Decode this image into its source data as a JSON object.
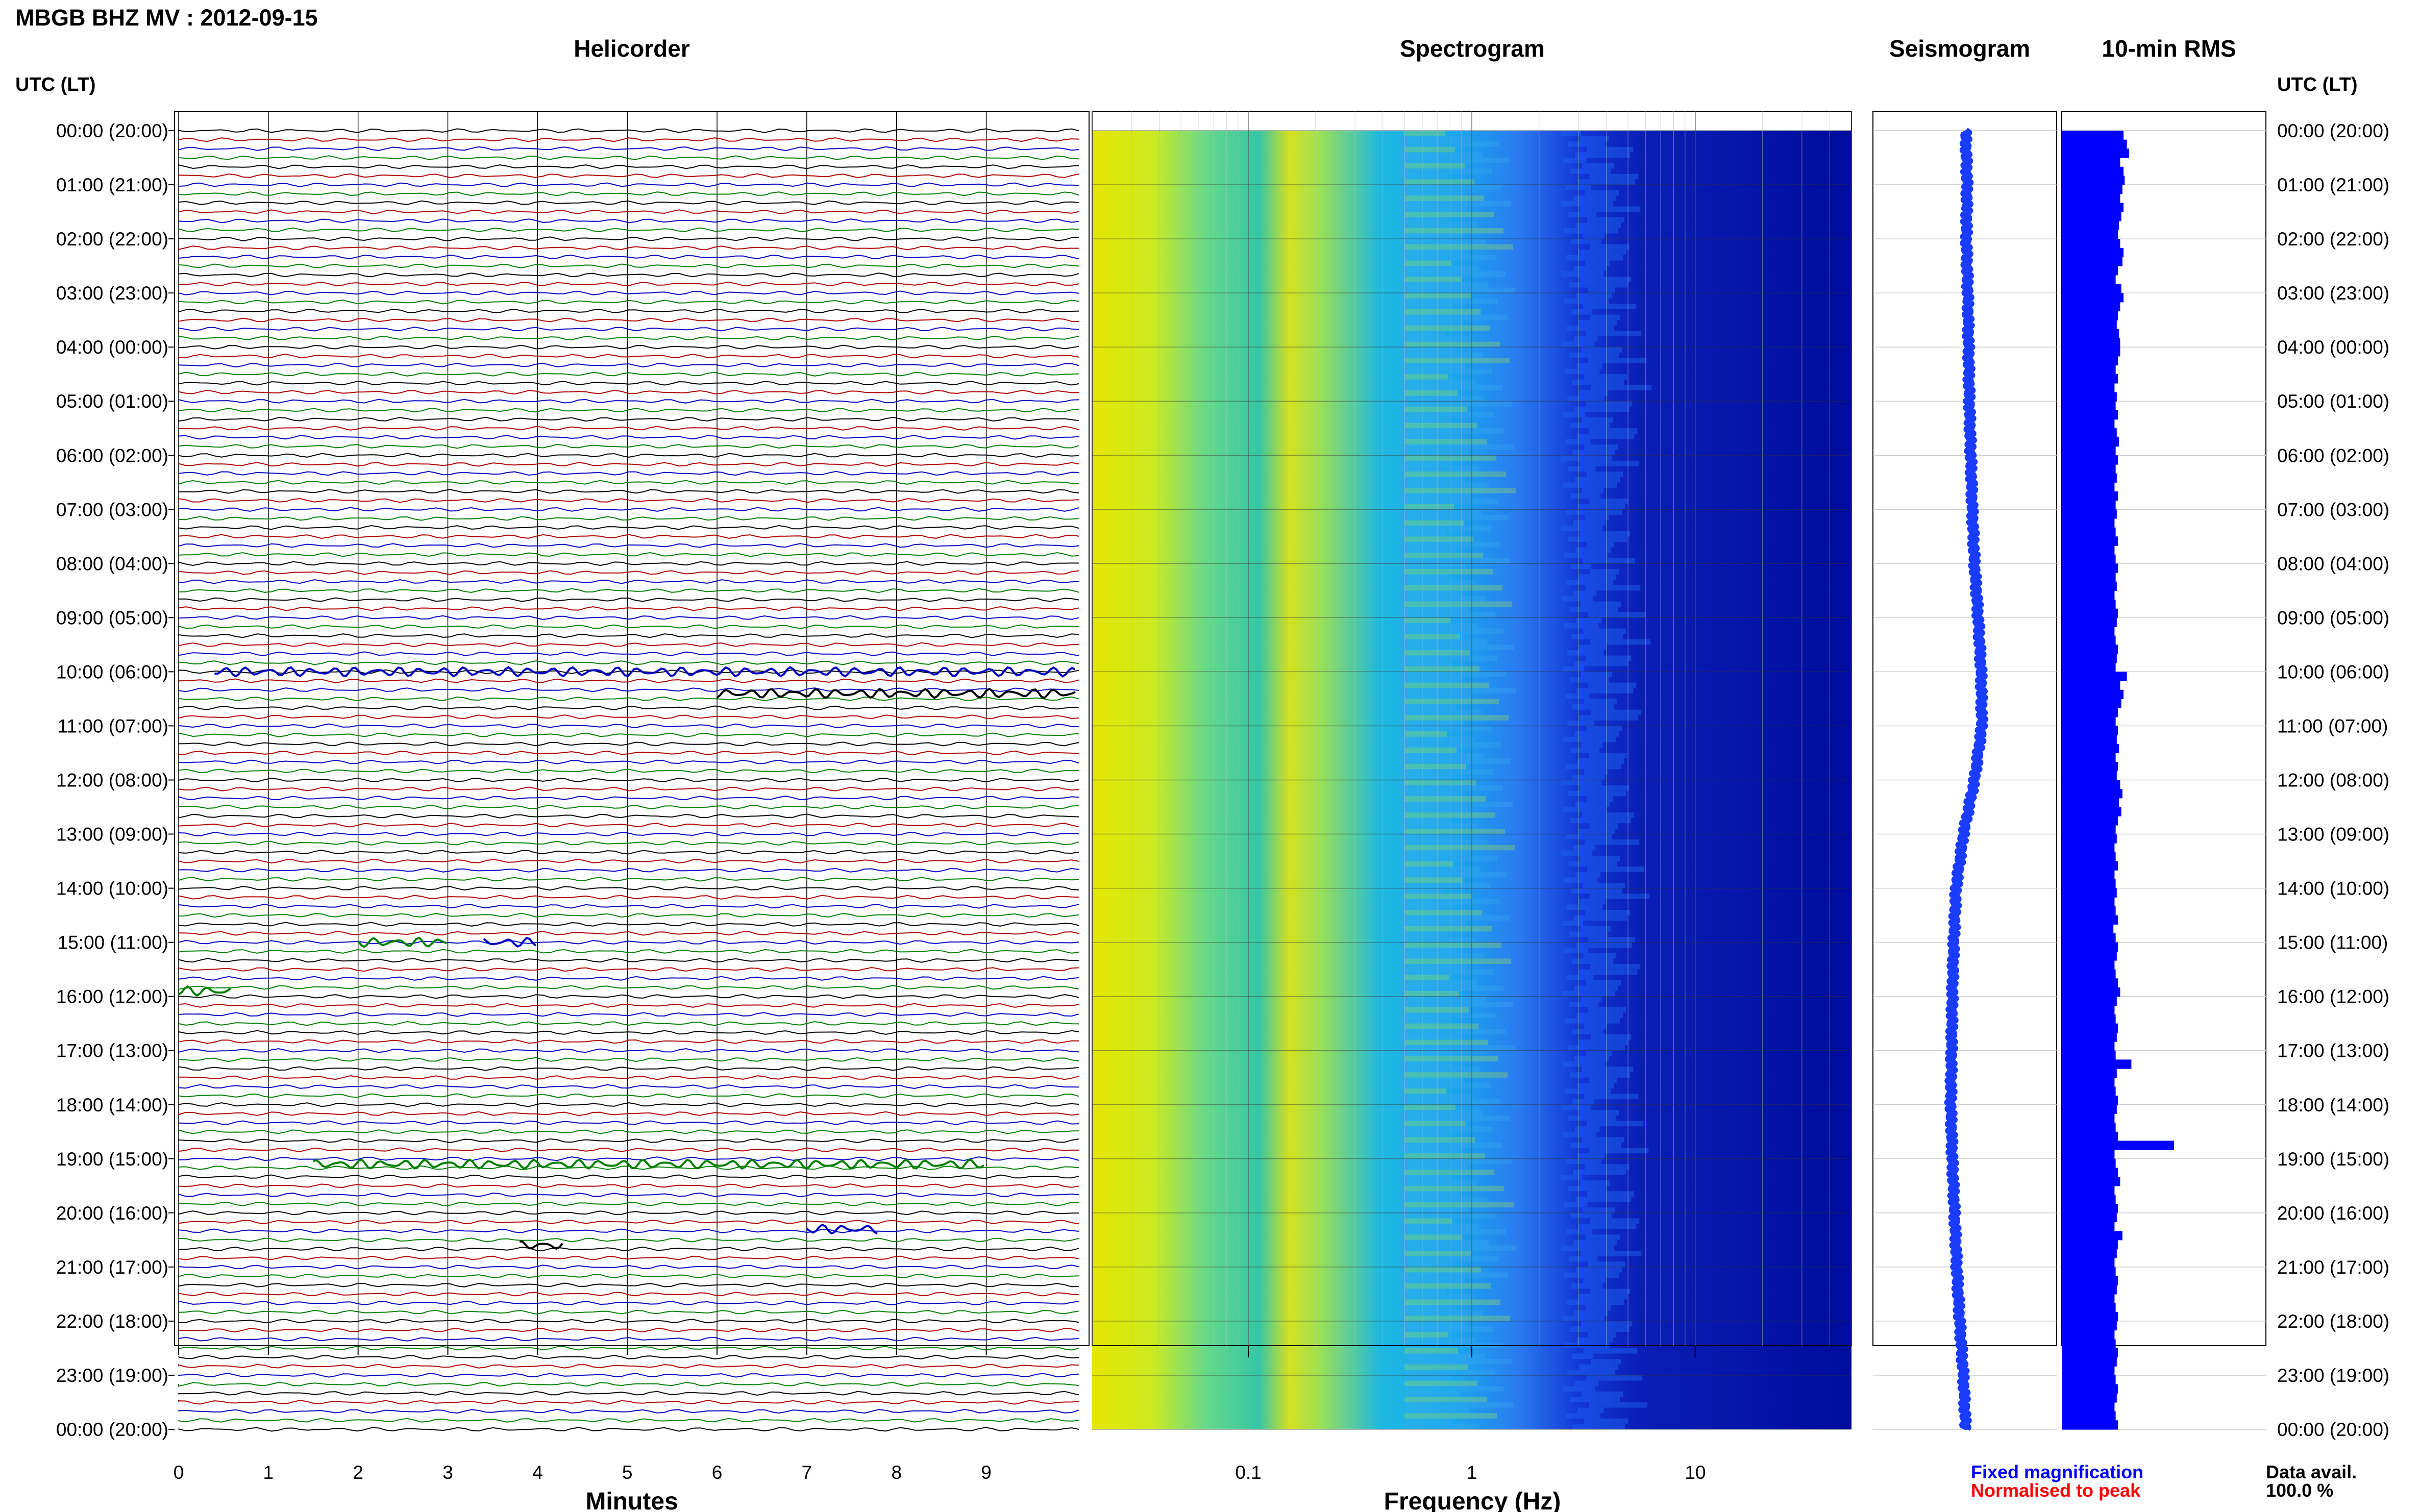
{
  "header": {
    "title": "MBGB BHZ MV : 2012-09-15"
  },
  "panels": {
    "helicorder": "Helicorder",
    "spectrogram": "Spectrogram",
    "seismogram": "Seismogram",
    "rms": "10-min RMS"
  },
  "axes": {
    "utc_label_left": "UTC (LT)",
    "utc_label_right": "UTC (LT)",
    "helicorder_xlabel": "Minutes",
    "spectrogram_xlabel": "Frequency (Hz)",
    "minute_ticks": [
      "0",
      "1",
      "2",
      "3",
      "4",
      "5",
      "6",
      "7",
      "8",
      "9"
    ],
    "freq_ticks": [
      "0.1",
      "1",
      "10"
    ]
  },
  "time_labels": [
    "00:00 (20:00)",
    "01:00 (21:00)",
    "02:00 (22:00)",
    "03:00 (23:00)",
    "04:00 (00:00)",
    "05:00 (01:00)",
    "06:00 (02:00)",
    "07:00 (03:00)",
    "08:00 (04:00)",
    "09:00 (05:00)",
    "10:00 (06:00)",
    "11:00 (07:00)",
    "12:00 (08:00)",
    "13:00 (09:00)",
    "14:00 (10:00)",
    "15:00 (11:00)",
    "16:00 (12:00)",
    "17:00 (13:00)",
    "18:00 (14:00)",
    "19:00 (15:00)",
    "20:00 (16:00)",
    "21:00 (17:00)",
    "22:00 (18:00)",
    "23:00 (19:00)",
    "00:00 (20:00)"
  ],
  "footer": {
    "fixed_magnification": "Fixed magnification",
    "normalised": "Normalised to peak",
    "data_avail_label": "Data avail.",
    "data_avail_value": "100.0 %"
  },
  "colors": {
    "trace_cycle": [
      "#000000",
      "#b00000",
      "#0000c0",
      "#008000"
    ],
    "fixed_magnification": "#0000ff",
    "normalised": "#ff0000",
    "rms_bar": "#0000ff",
    "seismogram": "#1a3cff"
  },
  "chart_data": {
    "type": "heatmap",
    "title": "MBGB BHZ MV : 2012-09-15",
    "helicorder": {
      "xlabel": "Minutes",
      "xlim": [
        0,
        10
      ],
      "rows_per_hour": 6,
      "events": [
        {
          "hour": 10.0,
          "minute_start": 0.4,
          "minute_end": 10,
          "color": "#0000c0"
        },
        {
          "hour": 10.4,
          "minute_start": 6.0,
          "minute_end": 10,
          "color": "#000000"
        },
        {
          "hour": 15.0,
          "minute_start": 3.4,
          "minute_end": 4.0,
          "color": "#0000c0"
        },
        {
          "hour": 15.0,
          "minute_start": 2.0,
          "minute_end": 3.0,
          "color": "#008000"
        },
        {
          "hour": 15.9,
          "minute_start": 0.0,
          "minute_end": 0.6,
          "color": "#008000"
        },
        {
          "hour": 19.1,
          "minute_start": 1.5,
          "minute_end": 9.0,
          "color": "#008000"
        },
        {
          "hour": 20.3,
          "minute_start": 7.0,
          "minute_end": 7.8,
          "color": "#0000c0"
        },
        {
          "hour": 20.6,
          "minute_start": 3.8,
          "minute_end": 4.3,
          "color": "#000000"
        }
      ]
    },
    "spectrogram": {
      "xlabel": "Frequency (Hz)",
      "xscale": "log",
      "xlim": [
        0.02,
        50
      ],
      "ticks": [
        0.1,
        1,
        10
      ]
    },
    "rms_10min_relative": [
      0.55,
      0.58,
      0.6,
      0.52,
      0.55,
      0.56,
      0.54,
      0.52,
      0.55,
      0.53,
      0.51,
      0.5,
      0.52,
      0.55,
      0.54,
      0.5,
      0.48,
      0.53,
      0.55,
      0.52,
      0.5,
      0.49,
      0.51,
      0.52,
      0.52,
      0.5,
      0.48,
      0.5,
      0.47,
      0.49,
      0.48,
      0.5,
      0.47,
      0.49,
      0.51,
      0.48,
      0.5,
      0.48,
      0.49,
      0.47,
      0.5,
      0.48,
      0.49,
      0.47,
      0.48,
      0.5,
      0.47,
      0.48,
      0.5,
      0.48,
      0.49,
      0.47,
      0.48,
      0.5,
      0.49,
      0.47,
      0.48,
      0.5,
      0.49,
      0.48,
      0.58,
      0.52,
      0.55,
      0.53,
      0.5,
      0.48,
      0.5,
      0.49,
      0.51,
      0.48,
      0.5,
      0.49,
      0.52,
      0.54,
      0.51,
      0.53,
      0.5,
      0.48,
      0.49,
      0.47,
      0.48,
      0.5,
      0.47,
      0.48,
      0.49,
      0.47,
      0.48,
      0.5,
      0.46,
      0.48,
      0.5,
      0.49,
      0.47,
      0.48,
      0.5,
      0.52,
      0.49,
      0.47,
      0.48,
      0.5,
      0.49,
      0.47,
      0.48,
      0.62,
      0.49,
      0.47,
      0.48,
      0.5,
      0.49,
      0.47,
      0.48,
      0.5,
      1.0,
      0.47,
      0.48,
      0.5,
      0.52,
      0.47,
      0.48,
      0.5,
      0.49,
      0.47,
      0.54,
      0.5,
      0.49,
      0.47,
      0.48,
      0.5,
      0.49,
      0.47,
      0.48,
      0.5,
      0.49,
      0.47,
      0.48,
      0.5,
      0.49,
      0.47,
      0.48,
      0.5,
      0.49,
      0.47,
      0.48,
      0.5
    ],
    "seismogram_offset": [
      0.08,
      0.1,
      0.09,
      0.11,
      0.12,
      0.13,
      0.15,
      0.17,
      0.2,
      0.25,
      0.29,
      0.3,
      0.2,
      0.05,
      -0.05,
      -0.08,
      -0.1,
      -0.11,
      -0.12,
      -0.1,
      -0.07,
      -0.04,
      0.0,
      0.05,
      0.08
    ]
  }
}
